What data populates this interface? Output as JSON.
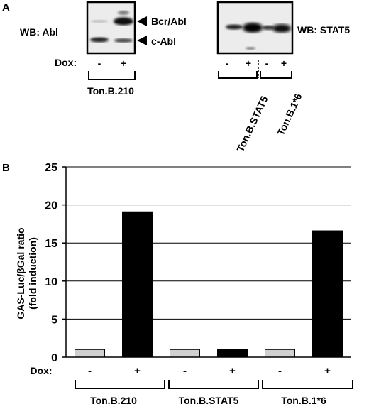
{
  "panel_a": {
    "label": "A",
    "blot1": {
      "label": "WB: Abl",
      "band_top": "Bcr/Abl",
      "band_bottom": "c-Abl"
    },
    "blot2": {
      "label": "WB: STAT5"
    },
    "dox_label": "Dox:",
    "lane_minus": "-",
    "lane_plus": "+",
    "cell_lines": [
      "Ton.B.210",
      "Ton.B.STAT5",
      "Ton.B.1*6"
    ]
  },
  "panel_b": {
    "label": "B",
    "dox_label": "Dox:"
  },
  "chart_data": {
    "type": "bar",
    "ylabel_line1": "GAS-Luc/βGal ratio",
    "ylabel_line2": "(fold induction)",
    "ylim": [
      0,
      25
    ],
    "yticks": [
      0,
      5,
      10,
      15,
      20,
      25
    ],
    "grid": true,
    "groups": [
      "Ton.B.210",
      "Ton.B.STAT5",
      "Ton.B.1*6"
    ],
    "categories": [
      "-",
      "+",
      "-",
      "+",
      "-",
      "+"
    ],
    "values": [
      1.0,
      19.1,
      1.0,
      1.0,
      1.0,
      16.6
    ],
    "colors": [
      "#d0d0d0",
      "#000000",
      "#d0d0d0",
      "#000000",
      "#d0d0d0",
      "#000000"
    ]
  }
}
